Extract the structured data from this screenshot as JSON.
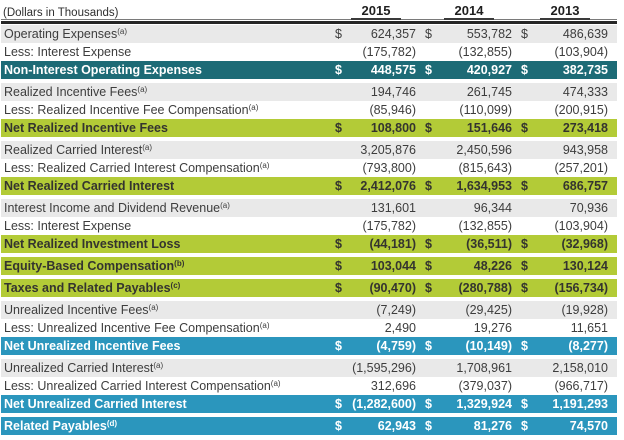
{
  "table": {
    "unit_label": "(Dollars in Thousands)",
    "currency_symbol": "$",
    "years": [
      "2015",
      "2014",
      "2013"
    ],
    "colors": {
      "teal_row": "#1d6b76",
      "green_row": "#b3cb37",
      "blue_row": "#2b96bd",
      "gray_row": "#e9e9e9",
      "header_rule": "#262626"
    },
    "rows": [
      {
        "label": "Operating Expenses",
        "sup": "(a)",
        "style": "gray",
        "dollar": true,
        "values": [
          "624,357",
          "553,782",
          "486,639"
        ]
      },
      {
        "label": "Less: Interest Expense",
        "sup": "",
        "style": "white",
        "dollar": false,
        "values": [
          "(175,782)",
          "(132,855)",
          "(103,904)"
        ]
      },
      {
        "label": "Non-Interest Operating Expenses",
        "sup": "",
        "style": "teal",
        "dollar": true,
        "values": [
          "448,575",
          "420,927",
          "382,735"
        ]
      },
      {
        "style": "gap"
      },
      {
        "label": "Realized Incentive Fees",
        "sup": "(a)",
        "style": "gray",
        "dollar": false,
        "values": [
          "194,746",
          "261,745",
          "474,333"
        ]
      },
      {
        "label": "Less: Realized Incentive Fee Compensation",
        "sup": "(a)",
        "style": "white",
        "dollar": false,
        "values": [
          "(85,946)",
          "(110,099)",
          "(200,915)"
        ]
      },
      {
        "label": "Net Realized Incentive Fees",
        "sup": "",
        "style": "green",
        "dollar": true,
        "values": [
          "108,800",
          "151,646",
          "273,418"
        ]
      },
      {
        "style": "gap"
      },
      {
        "label": "Realized Carried Interest",
        "sup": "(a)",
        "style": "gray",
        "dollar": false,
        "values": [
          "3,205,876",
          "2,450,596",
          "943,958"
        ]
      },
      {
        "label": "Less: Realized Carried Interest Compensation",
        "sup": "(a)",
        "style": "white",
        "dollar": false,
        "values": [
          "(793,800)",
          "(815,643)",
          "(257,201)"
        ]
      },
      {
        "label": "Net Realized Carried Interest",
        "sup": "",
        "style": "green",
        "dollar": true,
        "values": [
          "2,412,076",
          "1,634,953",
          "686,757"
        ]
      },
      {
        "style": "gap"
      },
      {
        "label": "Interest Income and Dividend Revenue",
        "sup": "(a)",
        "style": "gray",
        "dollar": false,
        "values": [
          "131,601",
          "96,344",
          "70,936"
        ]
      },
      {
        "label": "Less: Interest Expense",
        "sup": "",
        "style": "white",
        "dollar": false,
        "values": [
          "(175,782)",
          "(132,855)",
          "(103,904)"
        ]
      },
      {
        "label": "Net Realized Investment Loss",
        "sup": "",
        "style": "green",
        "dollar": true,
        "values": [
          "(44,181)",
          "(36,511)",
          "(32,968)"
        ]
      },
      {
        "style": "gap"
      },
      {
        "label": "Equity-Based Compensation",
        "sup": "(b)",
        "style": "green",
        "dollar": true,
        "values": [
          "103,044",
          "48,226",
          "130,124"
        ]
      },
      {
        "style": "gap"
      },
      {
        "label": "Taxes and Related Payables",
        "sup": "(c)",
        "style": "green",
        "dollar": true,
        "values": [
          "(90,470)",
          "(280,788)",
          "(156,734)"
        ]
      },
      {
        "style": "gap"
      },
      {
        "label": "Unrealized Incentive Fees",
        "sup": "(a)",
        "style": "gray",
        "dollar": false,
        "values": [
          "(7,249)",
          "(29,425)",
          "(19,928)"
        ]
      },
      {
        "label": "Less: Unrealized Incentive Fee Compensation",
        "sup": "(a)",
        "style": "white",
        "dollar": false,
        "values": [
          "2,490",
          "19,276",
          "11,651"
        ]
      },
      {
        "label": "Net Unrealized Incentive Fees",
        "sup": "",
        "style": "blue",
        "dollar": true,
        "values": [
          "(4,759)",
          "(10,149)",
          "(8,277)"
        ]
      },
      {
        "style": "gap"
      },
      {
        "label": "Unrealized Carried Interest",
        "sup": "(a)",
        "style": "gray",
        "dollar": false,
        "values": [
          "(1,595,296)",
          "1,708,961",
          "2,158,010"
        ]
      },
      {
        "label": "Less: Unrealized Carried Interest Compensation",
        "sup": "(a)",
        "style": "white",
        "dollar": false,
        "values": [
          "312,696",
          "(379,037)",
          "(966,717)"
        ]
      },
      {
        "label": "Net Unrealized Carried Interest",
        "sup": "",
        "style": "blue",
        "dollar": true,
        "values": [
          "(1,282,600)",
          "1,329,924",
          "1,191,293"
        ]
      },
      {
        "style": "gap"
      },
      {
        "label": "Related Payables",
        "sup": "(d)",
        "style": "blue",
        "dollar": true,
        "values": [
          "62,943",
          "81,276",
          "74,570"
        ]
      }
    ]
  }
}
